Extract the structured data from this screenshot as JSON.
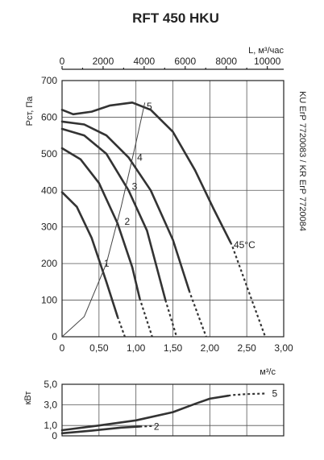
{
  "chart_data": [
    {
      "type": "line",
      "title": "RFT 450 HKU",
      "xlabel_top": "L, м³/час",
      "x_top_ticks": [
        "0",
        "2000",
        "4000",
        "6000",
        "8000",
        "10000"
      ],
      "x_top_lim": [
        0,
        10800
      ],
      "xlabel": "м³/с",
      "x_ticks": [
        "0",
        "0,50",
        "1,00",
        "1,50",
        "2,00",
        "2,50",
        "3,00"
      ],
      "xlim": [
        0,
        3.0
      ],
      "ylabel": "Рст, Па",
      "y_ticks": [
        "0",
        "100",
        "200",
        "300",
        "400",
        "500",
        "600",
        "700"
      ],
      "ylim": [
        0,
        700
      ],
      "side_label": "KU ErP 7720083 / KR ErP 7720084",
      "annotation": "45°C",
      "grid": true,
      "series": [
        {
          "name": "1",
          "x": [
            0,
            0.2,
            0.4,
            0.6,
            0.75,
            0.85
          ],
          "y": [
            395,
            355,
            270,
            150,
            55,
            0
          ],
          "dashed_from": 0.75
        },
        {
          "name": "2",
          "x": [
            0,
            0.25,
            0.5,
            0.75,
            0.95,
            1.05,
            1.22
          ],
          "y": [
            515,
            485,
            420,
            310,
            190,
            105,
            0
          ],
          "dashed_from": 1.05
        },
        {
          "name": "3",
          "x": [
            0,
            0.3,
            0.6,
            0.9,
            1.15,
            1.4,
            1.55
          ],
          "y": [
            568,
            550,
            500,
            400,
            290,
            100,
            0
          ],
          "dashed_from": 1.4
        },
        {
          "name": "4",
          "x": [
            0,
            0.3,
            0.6,
            0.9,
            1.2,
            1.5,
            1.73,
            1.95
          ],
          "y": [
            588,
            580,
            550,
            490,
            400,
            265,
            120,
            0
          ],
          "dashed_from": 1.72
        },
        {
          "name": "5",
          "x": [
            0,
            0.15,
            0.4,
            0.65,
            0.95,
            1.2,
            1.5,
            1.8,
            2.05,
            2.3,
            2.55,
            2.75
          ],
          "y": [
            620,
            608,
            615,
            632,
            640,
            620,
            560,
            455,
            350,
            250,
            110,
            0
          ],
          "dashed_from": 2.28
        }
      ],
      "system_curve": {
        "x": [
          0,
          0.3,
          0.6,
          0.8,
          1.0,
          1.12
        ],
        "y": [
          0,
          55,
          200,
          355,
          530,
          640
        ]
      }
    },
    {
      "type": "line",
      "xlabel": "",
      "ylabel": "кВт",
      "y_ticks": [
        "0",
        "1,0",
        "3,0",
        "5,0"
      ],
      "ylim": [
        0,
        5
      ],
      "xlim": [
        0,
        3.0
      ],
      "grid": true,
      "series": [
        {
          "name": "5",
          "x": [
            0,
            0.5,
            1.0,
            1.5,
            1.8,
            2.0,
            2.3,
            2.5,
            2.75
          ],
          "y": [
            0.55,
            1.0,
            1.5,
            2.3,
            3.1,
            3.6,
            3.95,
            4.05,
            4.1
          ],
          "dashed_from": 2.25
        },
        {
          "name": "2",
          "x": [
            0,
            0.4,
            0.8,
            1.05,
            1.22
          ],
          "y": [
            0.25,
            0.5,
            0.8,
            0.9,
            0.95
          ],
          "dashed_from": 1.05
        }
      ]
    }
  ]
}
